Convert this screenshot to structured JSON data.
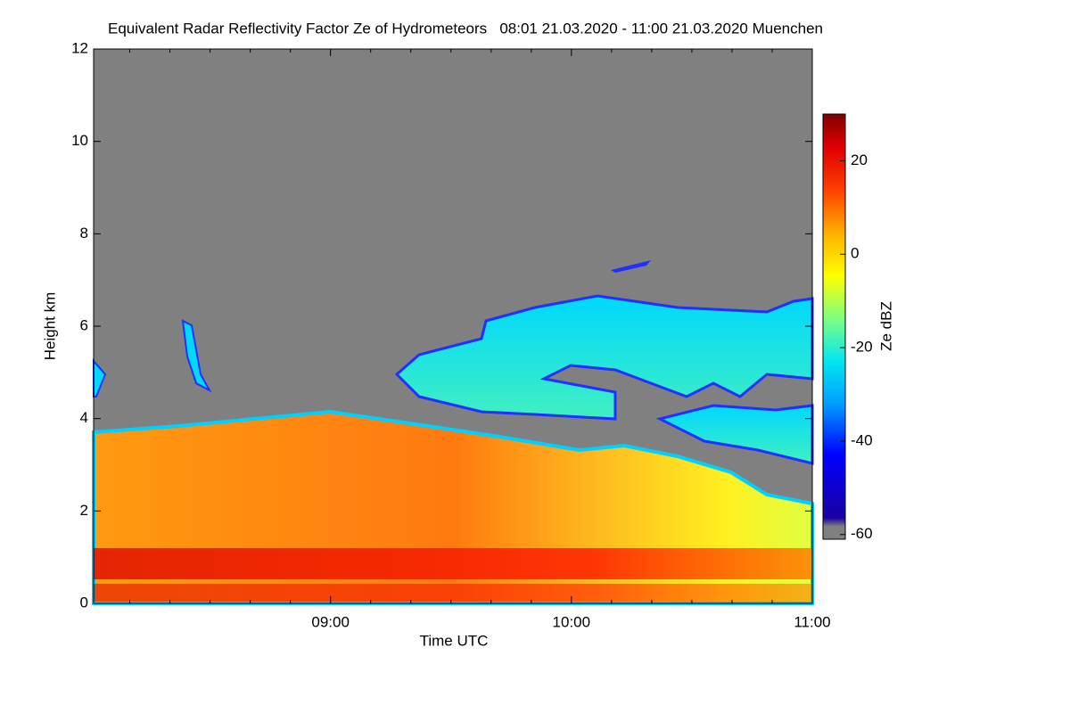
{
  "chart_data": {
    "type": "heatmap",
    "title": "Equivalent Radar Reflectivity Factor Ze of Hydrometeors   08:01 21.03.2020 - 11:00 21.03.2020 Muenchen",
    "x_label": "Time UTC",
    "y_label": "Height km",
    "xlim": [
      481,
      660
    ],
    "xticks": [
      {
        "value": 540,
        "label": "09:00"
      },
      {
        "value": 600,
        "label": "10:00"
      },
      {
        "value": 660,
        "label": "11:00"
      }
    ],
    "xminorticks": [
      490,
      500,
      510,
      520,
      530,
      550,
      560,
      570,
      580,
      590,
      610,
      620,
      630,
      640,
      650
    ],
    "ylim": [
      0,
      12
    ],
    "yticks": [
      0,
      2,
      4,
      6,
      8,
      10,
      12
    ],
    "colorbar_label": "Ze dBZ",
    "clim": [
      -61,
      30
    ],
    "colorbar_ticks": [
      -60,
      -40,
      -20,
      0,
      20
    ]
  }
}
